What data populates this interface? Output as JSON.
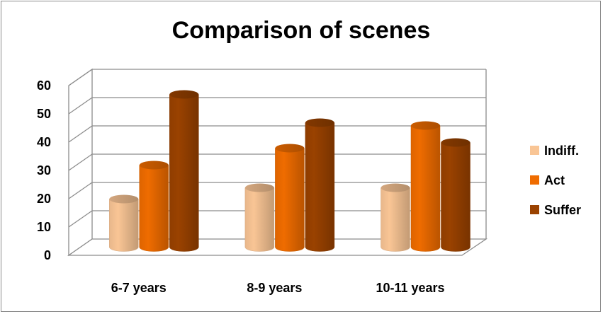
{
  "chart_data": {
    "type": "bar",
    "title": "Comparison of scenes",
    "xlabel": "",
    "ylabel": "",
    "categories": [
      "6-7 years",
      "8-9 years",
      "10-11 years"
    ],
    "series": [
      {
        "name": "Indiff.",
        "values": [
          17,
          21,
          21
        ],
        "color": "#f9c595"
      },
      {
        "name": "Act",
        "values": [
          29,
          35,
          43
        ],
        "color": "#ef6c00"
      },
      {
        "name": "Suffer",
        "values": [
          54,
          44,
          37
        ],
        "color": "#9a4200"
      }
    ],
    "ylim": [
      0,
      60
    ],
    "yticks": [
      "0",
      "10",
      "20",
      "30",
      "40",
      "50",
      "60"
    ],
    "grid": true,
    "legend": "right",
    "three_d": true
  }
}
